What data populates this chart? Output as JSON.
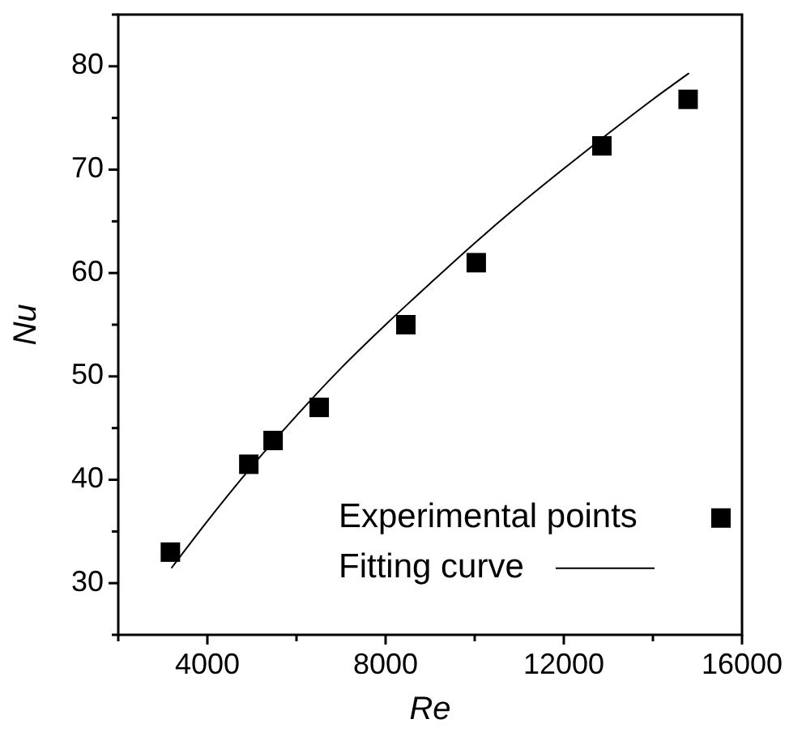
{
  "chart_data": {
    "type": "scatter",
    "xlabel": "Re",
    "ylabel": "Nu",
    "xlim": [
      2000,
      16000
    ],
    "ylim": [
      25,
      85
    ],
    "xticks": [
      {
        "value": 2000,
        "label": null
      },
      4000,
      {
        "value": 6000,
        "label": null
      },
      8000,
      {
        "value": 10000,
        "label": null
      },
      12000,
      {
        "value": 14000,
        "label": null
      },
      16000
    ],
    "yticks": [
      {
        "value": 25,
        "label": null
      },
      30,
      {
        "value": 35,
        "label": null
      },
      40,
      {
        "value": 45,
        "label": null
      },
      50,
      {
        "value": 55,
        "label": null
      },
      60,
      {
        "value": 65,
        "label": null
      },
      70,
      {
        "value": 75,
        "label": null
      },
      80,
      {
        "value": 85,
        "label": null
      }
    ],
    "grid": false,
    "legend": "bottom right",
    "series": [
      {
        "name": "Experimental points",
        "marker": "square",
        "color": "#000000",
        "x": [
          3170,
          4930,
          5475,
          6510,
          8455,
          10035,
          12855,
          14790
        ],
        "values": [
          33.0,
          41.5,
          43.8,
          47.0,
          55.0,
          61.0,
          72.3,
          76.8
        ]
      },
      {
        "name": "Fitting curve",
        "type": "line",
        "marker": "none",
        "line_style": "solid",
        "color": "#000000",
        "x": [
          3200,
          4000,
          5000,
          6000,
          7000,
          8000,
          9000,
          10000,
          11000,
          12000,
          13000,
          14000,
          14800
        ],
        "values": [
          31.5,
          36.0,
          41.3,
          46.2,
          50.8,
          55.0,
          59.0,
          62.9,
          66.6,
          70.1,
          73.5,
          76.8,
          79.3
        ]
      }
    ]
  }
}
